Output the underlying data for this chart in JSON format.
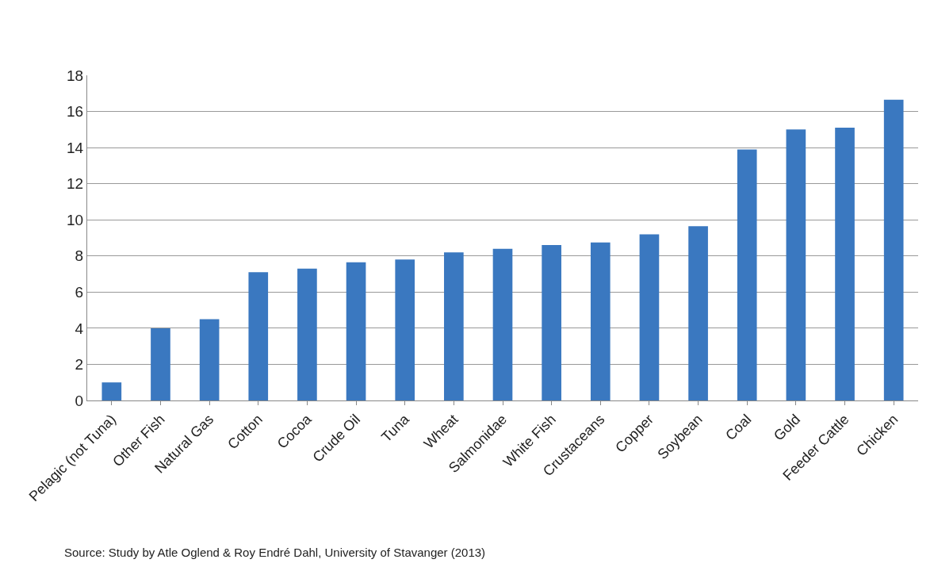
{
  "chart_data": {
    "type": "bar",
    "categories": [
      "Pelagic (not Tuna)",
      "Other Fish",
      "Natural Gas",
      "Cotton",
      "Cocoa",
      "Crude Oil",
      "Tuna",
      "Wheat",
      "Salmonidae",
      "White Fish",
      "Crustaceans",
      "Copper",
      "Soybean",
      "Coal",
      "Gold",
      "Feeder Cattle",
      "Chicken"
    ],
    "values": [
      1.0,
      4.0,
      4.5,
      7.1,
      7.3,
      7.65,
      7.8,
      8.2,
      8.4,
      8.6,
      8.75,
      9.2,
      9.65,
      13.9,
      15.0,
      15.1,
      16.65
    ],
    "color": "#3a78c0",
    "ylim": [
      0,
      18
    ],
    "yticks": [
      0,
      2,
      4,
      6,
      8,
      10,
      12,
      14,
      16,
      18
    ],
    "grid": "y",
    "annotations": [
      "Source: Study by Atle Oglend & Roy Endré Dahl, University of Stavanger (2013)"
    ]
  }
}
